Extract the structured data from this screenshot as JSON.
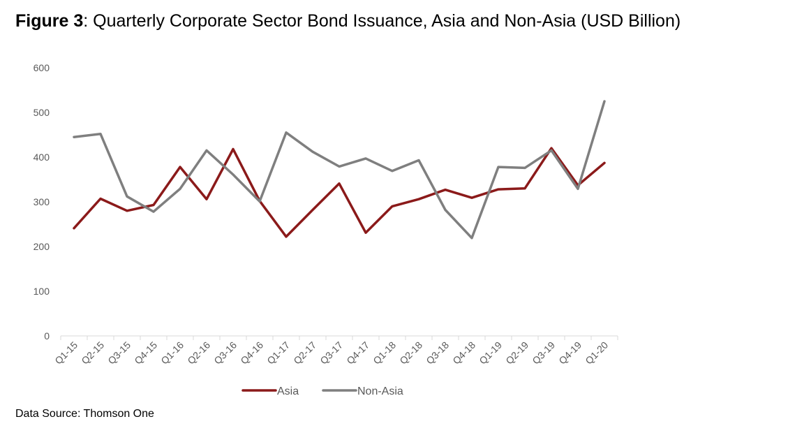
{
  "title": {
    "prefix": "Figure 3",
    "suffix": ": Quarterly Corporate Sector Bond Issuance, Asia and Non-Asia (USD Billion)"
  },
  "source": "Data Source: Thomson One",
  "chart_data": {
    "type": "line",
    "categories": [
      "Q1-15",
      "Q2-15",
      "Q3-15",
      "Q4-15",
      "Q1-16",
      "Q2-16",
      "Q3-16",
      "Q4-16",
      "Q1-17",
      "Q2-17",
      "Q3-17",
      "Q4-17",
      "Q1-18",
      "Q2-18",
      "Q3-18",
      "Q4-18",
      "Q1-19",
      "Q2-19",
      "Q3-19",
      "Q4-19",
      "Q1-20"
    ],
    "ylim": [
      0,
      600
    ],
    "yticks": [
      0,
      100,
      200,
      300,
      400,
      500,
      600
    ],
    "grid": false,
    "legend": "bottom",
    "series": [
      {
        "name": "Asia",
        "color": "#8b1a1a",
        "values": [
          241,
          307,
          280,
          293,
          378,
          306,
          418,
          302,
          222,
          282,
          341,
          231,
          290,
          306,
          327,
          309,
          328,
          330,
          420,
          337,
          387
        ]
      },
      {
        "name": "Non-Asia",
        "color": "#7f7f7f",
        "values": [
          445,
          452,
          312,
          278,
          329,
          415,
          361,
          301,
          455,
          412,
          379,
          397,
          369,
          393,
          282,
          219,
          378,
          376,
          415,
          329,
          525
        ]
      }
    ]
  }
}
